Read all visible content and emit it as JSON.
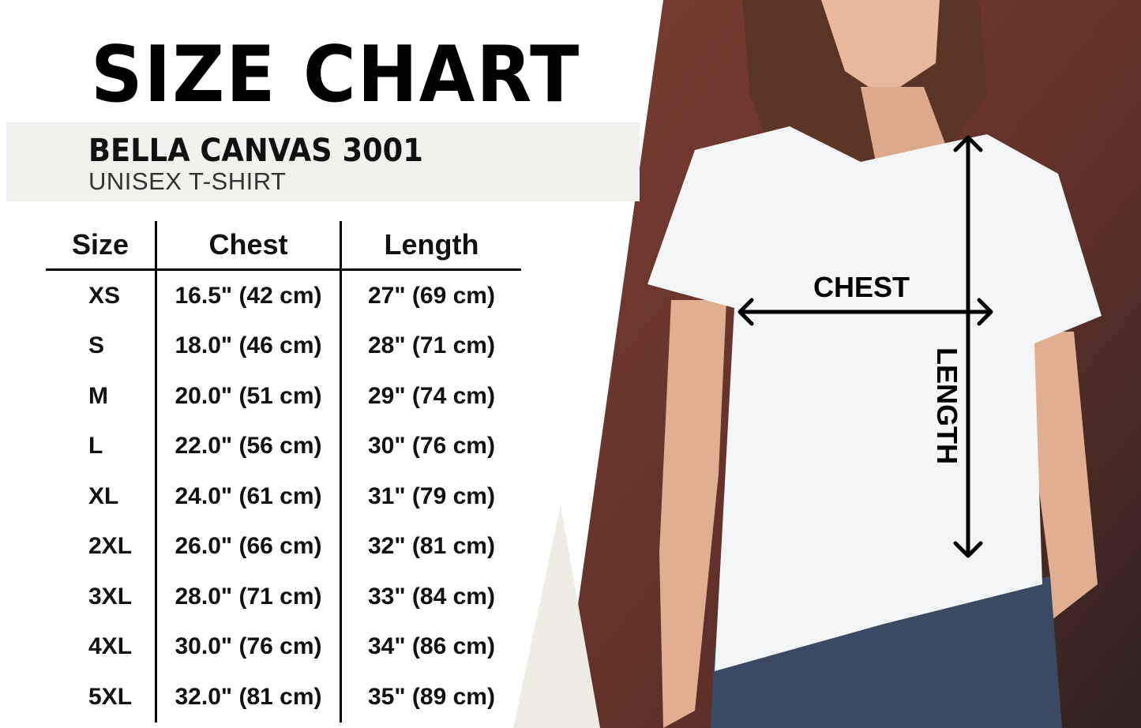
{
  "title": "SIZE CHART",
  "product": {
    "brand": "BELLA CANVAS 3001",
    "type": "UNISEX T-SHIRT"
  },
  "table": {
    "headers": [
      "Size",
      "Chest",
      "Length"
    ],
    "rows": [
      [
        "XS",
        "16.5\" (42 cm)",
        "27\" (69 cm)"
      ],
      [
        "S",
        "18.0\" (46 cm)",
        "28\" (71 cm)"
      ],
      [
        "M",
        "20.0\" (51 cm)",
        "29\" (74 cm)"
      ],
      [
        "L",
        "22.0\" (56 cm)",
        "30\" (76 cm)"
      ],
      [
        "XL",
        "24.0\" (61 cm)",
        "31\" (79 cm)"
      ],
      [
        "2XL",
        "26.0\" (66 cm)",
        "32\" (81 cm)"
      ],
      [
        "3XL",
        "28.0\" (71 cm)",
        "33\" (84 cm)"
      ],
      [
        "4XL",
        "30.0\" (76 cm)",
        "34\" (86 cm)"
      ],
      [
        "5XL",
        "32.0\" (81 cm)",
        "35\" (89 cm)"
      ]
    ]
  },
  "diagram": {
    "chest_label": "CHEST",
    "length_label": "LENGTH"
  },
  "colors": {
    "band": "#f3f1ed",
    "background_wall": "#6e3a30",
    "shirt": "#f4f5f7",
    "jeans": "#3a4a63"
  }
}
